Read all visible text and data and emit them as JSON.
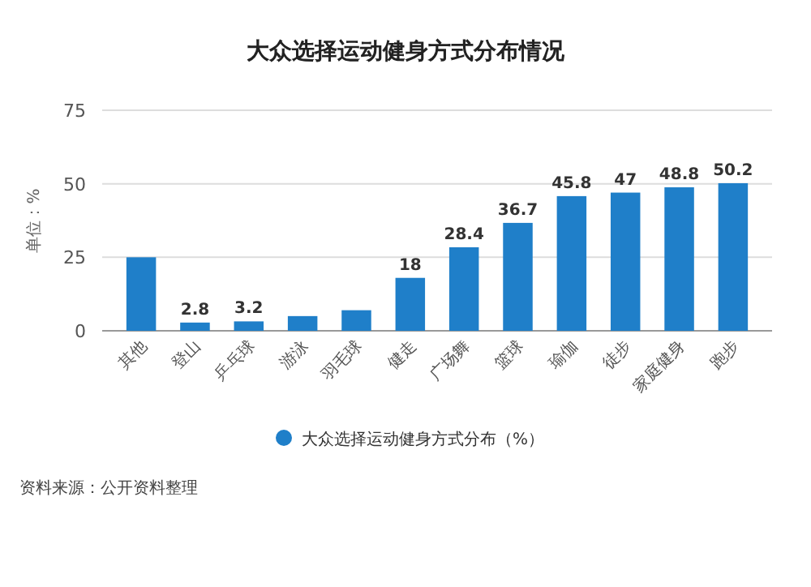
{
  "chart_data": {
    "type": "bar",
    "title": "大众选择运动健身方式分布情况",
    "ylabel": "单位：%",
    "categories": [
      "其他",
      "登山",
      "乒乓球",
      "游泳",
      "羽毛球",
      "健走",
      "广场舞",
      "篮球",
      "瑜伽",
      "徒步",
      "家庭健身",
      "跑步"
    ],
    "series": [
      {
        "name": "大众选择运动健身方式分布（%）",
        "color": "#1f7fc9",
        "values": [
          25,
          2.8,
          3.2,
          5,
          7,
          18,
          28.4,
          36.7,
          45.8,
          47,
          48.8,
          50.2
        ],
        "value_labels": [
          null,
          "2.8",
          "3.2",
          null,
          null,
          "18",
          "28.4",
          "36.7",
          "45.8",
          "47",
          "48.8",
          "50.2"
        ]
      }
    ],
    "ylim": [
      0,
      75
    ],
    "yticks": [
      0,
      25,
      50,
      75
    ],
    "grid": "y",
    "legend": "bottom",
    "marker": "circle",
    "annotations": [
      "资料来源：公开资料整理"
    ]
  }
}
